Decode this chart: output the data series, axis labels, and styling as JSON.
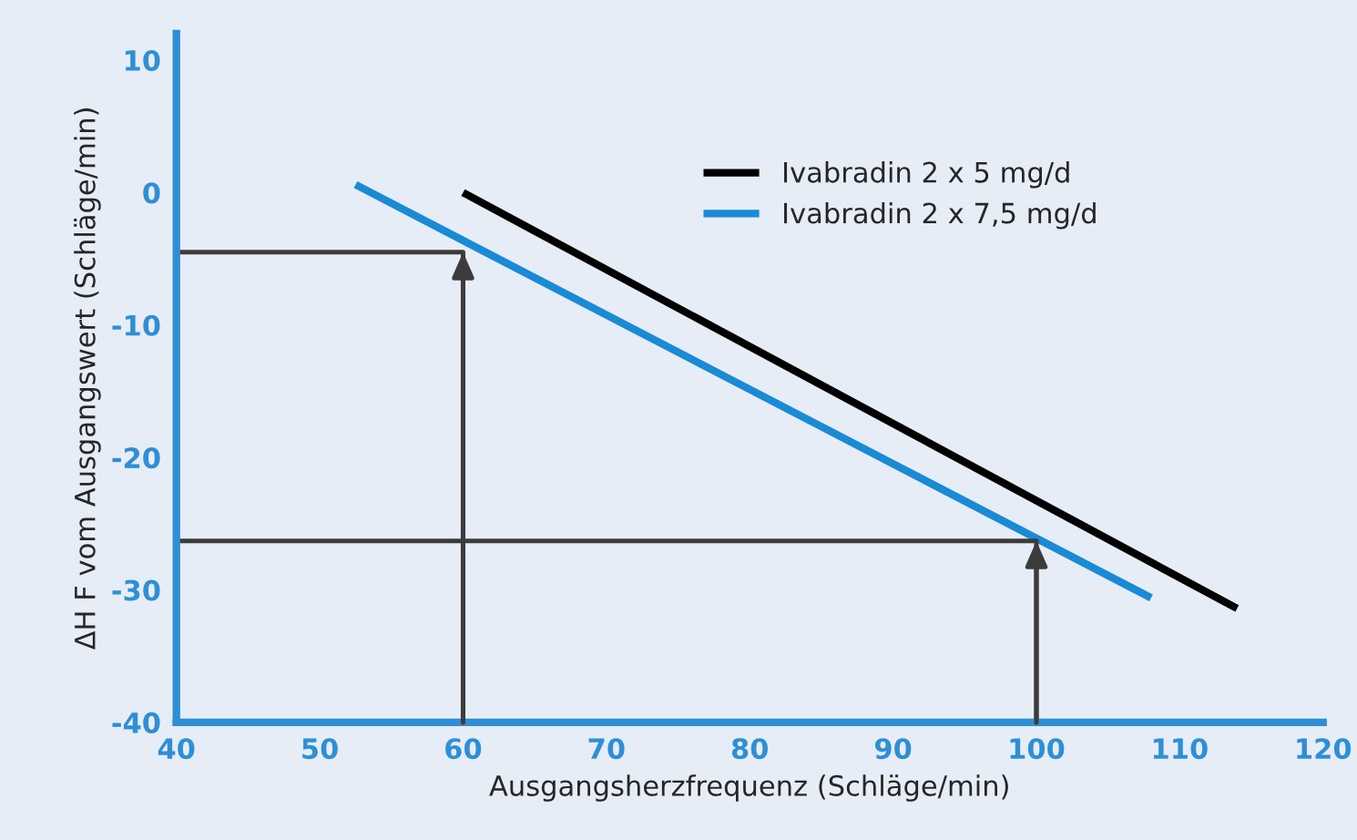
{
  "chart_data": {
    "type": "line",
    "xlabel": "Ausgangsherzfrequenz (Schläge/min)",
    "ylabel": "ΔH F vom Ausgangswert (Schläge/min)",
    "xlim": [
      40,
      120
    ],
    "xticks": [
      40,
      50,
      60,
      70,
      80,
      90,
      100,
      110,
      120
    ],
    "ylim": [
      -40,
      12
    ],
    "yticks": [
      -40,
      -30,
      -20,
      -10,
      0,
      10
    ],
    "grid": false,
    "legend": "top right",
    "series": [
      {
        "name": "Ivabradin 2 x 5 mg/d",
        "color": "#000000",
        "x": [
          60,
          114
        ],
        "values": [
          0,
          -31.4
        ]
      },
      {
        "name": "Ivabradin 2 x 7,5 mg/d",
        "color": "#1a8ad4",
        "x": [
          52.5,
          108
        ],
        "values": [
          0.6,
          -30.6
        ]
      },
      {
        "color": "#3c3c3c",
        "x": [
          40,
          60,
          60
        ],
        "values": [
          -4.5,
          -4.5,
          -40
        ]
      },
      {
        "color": "#3c3c3c",
        "x": [
          40,
          100,
          100
        ],
        "values": [
          -26.3,
          -26.3,
          -40
        ]
      }
    ]
  }
}
